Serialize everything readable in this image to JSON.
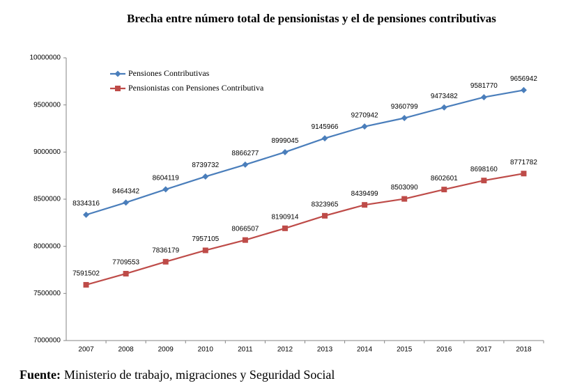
{
  "chart_data": {
    "type": "line",
    "title": "Brecha entre número total de pensionistas y el de pensiones contributivas",
    "categories": [
      "2007",
      "2008",
      "2009",
      "2010",
      "2011",
      "2012",
      "2013",
      "2014",
      "2015",
      "2016",
      "2017",
      "2018"
    ],
    "series": [
      {
        "name": "Pensiones Contributivas",
        "color": "#4a7ebb",
        "marker": "diamond",
        "values": [
          8334316,
          8464342,
          8604119,
          8739732,
          8866277,
          8999045,
          9145966,
          9270942,
          9360799,
          9473482,
          9581770,
          9656942
        ]
      },
      {
        "name": "Pensionistas con Pensiones Contributiva",
        "color": "#be4b48",
        "marker": "square",
        "values": [
          7591502,
          7709553,
          7836179,
          7957105,
          8066507,
          8190914,
          8323965,
          8439499,
          8503090,
          8602601,
          8698160,
          8771782
        ]
      }
    ],
    "ylim": [
      7000000,
      10000000
    ],
    "yticks": [
      7000000,
      7500000,
      8000000,
      8500000,
      9000000,
      9500000,
      10000000
    ],
    "grid": false,
    "legend": "top-left",
    "source_label": "Fuente:",
    "source": "Ministerio de trabajo, migraciones y Seguridad Social"
  }
}
